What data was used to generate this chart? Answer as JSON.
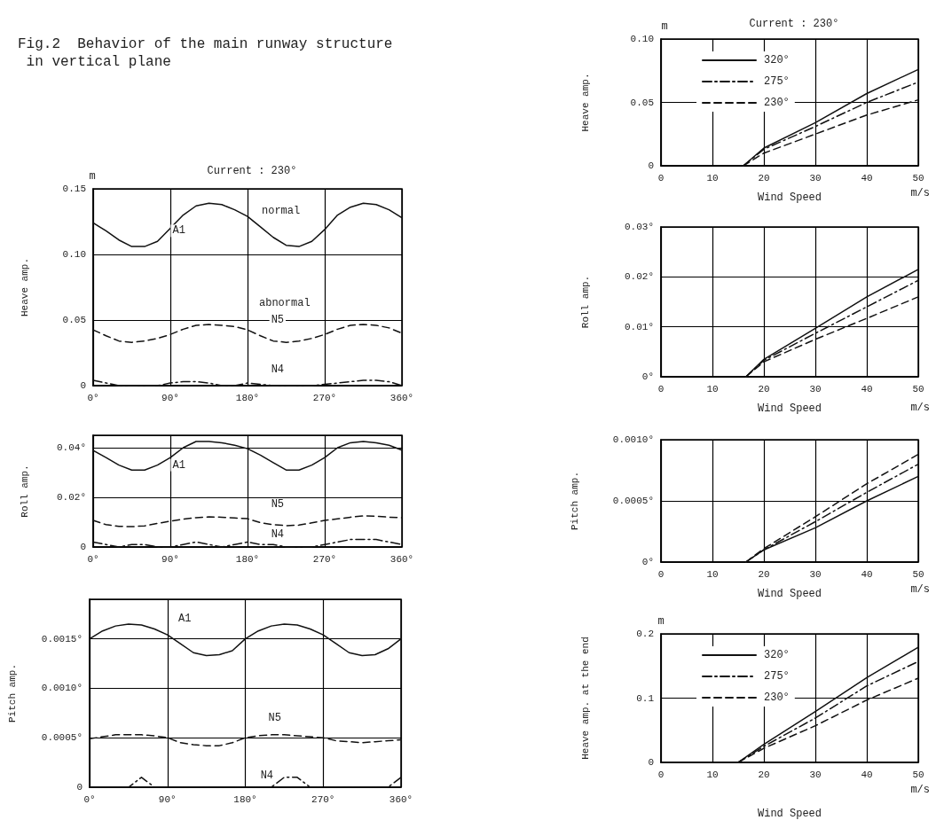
{
  "chart_data": [
    {
      "type": "line",
      "title": "Fig.2  Behavior of the main runway structure in vertical plane",
      "subtitle": "Current : 230°",
      "ylabel": "Heave amp.",
      "xlim": [
        0,
        360
      ],
      "xticks": [
        {
          "value": 0,
          "label": "0°"
        },
        {
          "value": 90,
          "label": "90°"
        },
        {
          "value": 180,
          "label": "180°"
        },
        {
          "value": 270,
          "label": "270°"
        },
        {
          "value": 360,
          "label": "360°"
        }
      ],
      "ylim": [
        0,
        0.15
      ],
      "yticks": [
        0,
        0.05,
        {
          "value": 0.1,
          "label": "0.10"
        },
        0.15
      ],
      "grid": true,
      "marker": "none",
      "x": [
        0,
        15,
        30,
        45,
        60,
        75,
        90,
        105,
        120,
        135,
        150,
        165,
        180,
        195,
        210,
        225,
        240,
        255,
        270,
        285,
        300,
        315,
        330,
        345,
        360
      ],
      "series": [
        {
          "color": "#111111",
          "line_style": "solid",
          "values": [
            0.124,
            0.118,
            0.111,
            0.106,
            0.106,
            0.11,
            0.12,
            0.13,
            0.137,
            0.139,
            0.138,
            0.134,
            0.129,
            0.121,
            0.113,
            0.107,
            0.106,
            0.11,
            0.119,
            0.13,
            0.136,
            0.139,
            0.138,
            0.134,
            0.128
          ]
        },
        {
          "color": "#111111",
          "line_style": "dashed",
          "values": [
            0.0425,
            0.038,
            0.034,
            0.033,
            0.034,
            0.036,
            0.039,
            0.043,
            0.046,
            0.0466,
            0.046,
            0.045,
            0.0425,
            0.038,
            0.034,
            0.033,
            0.034,
            0.036,
            0.039,
            0.043,
            0.046,
            0.0466,
            0.046,
            0.044,
            0.04
          ]
        },
        {
          "color": "#111111",
          "line_style": "dashdot",
          "values": [
            0.004,
            0.002,
            0,
            0,
            0,
            0,
            0.002,
            0.003,
            0.003,
            0.002,
            0,
            0,
            0.002,
            0.001,
            0,
            0,
            0,
            0,
            0.001,
            0.002,
            0.003,
            0.004,
            0.004,
            0.003,
            0
          ]
        }
      ],
      "annotations": [
        "m",
        "normal",
        "abnormal",
        {
          "text": "A1",
          "x": 100,
          "y": 0.118
        },
        {
          "text": "N5",
          "x": 215,
          "y": 0.05
        },
        {
          "text": "N4",
          "x": 215,
          "y": 0.012
        }
      ]
    },
    {
      "type": "line",
      "ylabel": "Roll amp.",
      "xlim": [
        0,
        360
      ],
      "xticks": [
        {
          "value": 0,
          "label": "0°"
        },
        {
          "value": 90,
          "label": "90°"
        },
        {
          "value": 180,
          "label": "180°"
        },
        {
          "value": 270,
          "label": "270°"
        },
        {
          "value": 360,
          "label": "360°"
        }
      ],
      "ylim": [
        0,
        0.045
      ],
      "yticks": [
        0,
        {
          "value": 0.02,
          "label": "0.02°"
        },
        {
          "value": 0.04,
          "label": "0.04°"
        }
      ],
      "grid": true,
      "marker": "none",
      "x": [
        0,
        15,
        30,
        45,
        60,
        75,
        90,
        105,
        120,
        135,
        150,
        165,
        180,
        195,
        210,
        225,
        240,
        255,
        270,
        285,
        300,
        315,
        330,
        345,
        360
      ],
      "series": [
        {
          "color": "#111111",
          "line_style": "solid",
          "values": [
            0.0389,
            0.036,
            0.033,
            0.031,
            0.031,
            0.033,
            0.036,
            0.04,
            0.0425,
            0.0425,
            0.042,
            0.041,
            0.0396,
            0.037,
            0.034,
            0.031,
            0.031,
            0.033,
            0.036,
            0.04,
            0.042,
            0.0425,
            0.042,
            0.041,
            0.039
          ]
        },
        {
          "color": "#111111",
          "line_style": "dashed",
          "values": [
            0.0107,
            0.009,
            0.0083,
            0.0082,
            0.0085,
            0.0095,
            0.0104,
            0.0112,
            0.0118,
            0.0121,
            0.012,
            0.0117,
            0.0114,
            0.0098,
            0.009,
            0.0086,
            0.0088,
            0.0097,
            0.0107,
            0.0113,
            0.012,
            0.0125,
            0.0124,
            0.012,
            0.0118
          ]
        },
        {
          "color": "#111111",
          "line_style": "dashdot",
          "values": [
            0.002,
            0.001,
            0,
            0.001,
            0.001,
            0,
            0,
            0.001,
            0.002,
            0.001,
            0,
            0.001,
            0.002,
            0.001,
            0.001,
            0,
            0,
            0,
            0.001,
            0.002,
            0.003,
            0.003,
            0.003,
            0.002,
            0.001
          ]
        }
      ],
      "annotations": [
        {
          "text": "A1",
          "x": 100,
          "y": 0.033
        },
        {
          "text": "N5",
          "x": 215,
          "y": 0.017
        },
        {
          "text": "N4",
          "x": 215,
          "y": 0.005
        }
      ]
    },
    {
      "type": "line",
      "ylabel": "Pitch amp.",
      "xlim": [
        0,
        360
      ],
      "xticks": [
        {
          "value": 0,
          "label": "0°"
        },
        {
          "value": 90,
          "label": "90°"
        },
        {
          "value": 180,
          "label": "180°"
        },
        {
          "value": 270,
          "label": "270°"
        },
        {
          "value": 360,
          "label": "360°"
        }
      ],
      "ylim": [
        0,
        0.0019
      ],
      "yticks": [
        0,
        {
          "value": 0.0005,
          "label": "0.0005°"
        },
        {
          "value": 0.001,
          "label": "0.0010°"
        },
        {
          "value": 0.0015,
          "label": "0.0015°"
        }
      ],
      "grid": true,
      "marker": "none",
      "x": [
        0,
        15,
        30,
        45,
        60,
        75,
        90,
        105,
        120,
        135,
        150,
        165,
        180,
        195,
        210,
        225,
        240,
        255,
        270,
        285,
        300,
        315,
        330,
        345,
        360
      ],
      "series": [
        {
          "color": "#111111",
          "line_style": "solid",
          "values": [
            0.0015,
            0.00158,
            0.00163,
            0.00165,
            0.00164,
            0.0016,
            0.00154,
            0.00145,
            0.00136,
            0.00133,
            0.00134,
            0.00138,
            0.0015,
            0.00158,
            0.00163,
            0.00165,
            0.00164,
            0.0016,
            0.00154,
            0.00145,
            0.00136,
            0.00133,
            0.00134,
            0.0014,
            0.0015
          ]
        },
        {
          "color": "#111111",
          "line_style": "dashed",
          "values": [
            0.00049,
            0.00051,
            0.00053,
            0.00053,
            0.00053,
            0.00052,
            0.0005,
            0.00045,
            0.00043,
            0.00042,
            0.00042,
            0.00045,
            0.0005,
            0.00052,
            0.00053,
            0.00053,
            0.00052,
            0.00051,
            0.0005,
            0.00047,
            0.00046,
            0.00045,
            0.00046,
            0.00047,
            0.00048
          ]
        },
        {
          "color": "#111111",
          "line_style": "dashdot",
          "values": [
            0,
            0,
            0,
            0,
            0.0001,
            0,
            0,
            0,
            0,
            0,
            0,
            0,
            0,
            0,
            0,
            0.0001,
            0.0001,
            0,
            0,
            0,
            0,
            0,
            0,
            0,
            0.0001
          ]
        }
      ],
      "annotations": [
        {
          "text": "A1",
          "x": 110,
          "y": 0.0017
        },
        {
          "text": "N5",
          "x": 214,
          "y": 0.0007
        },
        {
          "text": "N4",
          "x": 205,
          "y": 0.00012
        }
      ]
    },
    {
      "type": "line",
      "title": "Current : 230°",
      "ylabel": "Heave amp.",
      "xlabel": "Wind Speed",
      "xlim": [
        0,
        50
      ],
      "xticks": [
        0,
        10,
        20,
        30,
        40,
        50
      ],
      "ylim": [
        0,
        0.1
      ],
      "yticks": [
        0,
        0.05,
        {
          "value": 0.1,
          "label": "0.10"
        }
      ],
      "grid": true,
      "marker": "none",
      "legend": "top left",
      "x": [
        16,
        20,
        30,
        40,
        50
      ],
      "series": [
        {
          "name": "320°",
          "color": "#111111",
          "line_style": "solid",
          "values": [
            0,
            0.014,
            0.034,
            0.057,
            0.076
          ]
        },
        {
          "name": "275°",
          "color": "#111111",
          "line_style": "dashdot",
          "values": [
            0,
            0.013,
            0.031,
            0.05,
            0.066
          ]
        },
        {
          "name": "230°",
          "color": "#111111",
          "line_style": "dashed",
          "values": [
            0,
            0.01,
            0.025,
            0.04,
            0.052
          ]
        }
      ],
      "annotations": [
        "m",
        "m/s"
      ]
    },
    {
      "type": "line",
      "ylabel": "Roll amp.",
      "xlabel": "Wind Speed",
      "xlim": [
        0,
        50
      ],
      "xticks": [
        0,
        10,
        20,
        30,
        40,
        50
      ],
      "ylim": [
        0,
        0.03
      ],
      "yticks": [
        {
          "value": 0,
          "label": "0°"
        },
        {
          "value": 0.01,
          "label": "0.01°"
        },
        {
          "value": 0.02,
          "label": "0.02°"
        },
        {
          "value": 0.03,
          "label": "0.03°"
        }
      ],
      "grid": true,
      "marker": "none",
      "x": [
        16.5,
        20,
        30,
        40,
        50
      ],
      "series": [
        {
          "color": "#111111",
          "line_style": "solid",
          "values": [
            0,
            0.0035,
            0.0097,
            0.016,
            0.0215
          ]
        },
        {
          "color": "#111111",
          "line_style": "dashdot",
          "values": [
            0,
            0.0033,
            0.0087,
            0.014,
            0.0193
          ]
        },
        {
          "color": "#111111",
          "line_style": "dashed",
          "values": [
            0,
            0.003,
            0.0075,
            0.0117,
            0.016
          ]
        }
      ],
      "annotations": [
        "m/s"
      ]
    },
    {
      "type": "line",
      "ylabel": "Pitch amp.",
      "xlabel": "Wind Speed",
      "xlim": [
        0,
        50
      ],
      "xticks": [
        0,
        10,
        20,
        30,
        40,
        50
      ],
      "ylim": [
        0,
        0.001
      ],
      "yticks": [
        {
          "value": 0,
          "label": "0°"
        },
        {
          "value": 0.0005,
          "label": "0.0005°"
        },
        {
          "value": 0.001,
          "label": "0.0010°"
        }
      ],
      "grid": true,
      "marker": "none",
      "x": [
        16.5,
        20,
        30,
        40,
        50
      ],
      "series": [
        {
          "color": "#111111",
          "line_style": "solid",
          "values": [
            0,
            0.0001,
            0.00028,
            0.0005,
            0.0007
          ]
        },
        {
          "color": "#111111",
          "line_style": "dashdot",
          "values": [
            0,
            0.0001,
            0.00033,
            0.00057,
            0.0008
          ]
        },
        {
          "color": "#111111",
          "line_style": "dashed",
          "values": [
            0,
            0.00011,
            0.00037,
            0.00064,
            0.00088
          ]
        }
      ],
      "annotations": [
        "m/s"
      ]
    },
    {
      "type": "line",
      "ylabel": "Heave amp. at the end",
      "xlabel": "Wind Speed",
      "xlim": [
        0,
        50
      ],
      "xticks": [
        0,
        10,
        20,
        30,
        40,
        50
      ],
      "ylim": [
        0,
        0.2
      ],
      "yticks": [
        0,
        0.1,
        0.2
      ],
      "grid": true,
      "marker": "none",
      "legend": "top left",
      "x": [
        15,
        20,
        30,
        40,
        50
      ],
      "series": [
        {
          "name": "320°",
          "color": "#111111",
          "line_style": "solid",
          "values": [
            0,
            0.028,
            0.079,
            0.132,
            0.179
          ]
        },
        {
          "name": "275°",
          "color": "#111111",
          "line_style": "dashdot",
          "values": [
            0,
            0.025,
            0.069,
            0.119,
            0.157
          ]
        },
        {
          "name": "230°",
          "color": "#111111",
          "line_style": "dashed",
          "values": [
            0,
            0.022,
            0.057,
            0.097,
            0.131
          ]
        }
      ],
      "annotations": [
        "m",
        "m/s"
      ]
    }
  ]
}
